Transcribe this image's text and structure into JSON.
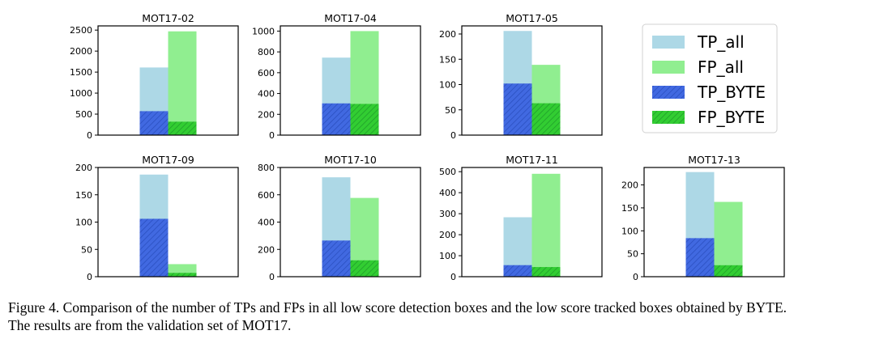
{
  "legend": {
    "placement": "top-right",
    "entries": [
      {
        "label": "TP_all",
        "color": "#add8e6",
        "hatch": false
      },
      {
        "label": "FP_all",
        "color": "#90ee90",
        "hatch": false
      },
      {
        "label": "TP_BYTE",
        "color": "#4169e1",
        "hatch": true
      },
      {
        "label": "FP_BYTE",
        "color": "#32cd32",
        "hatch": true
      }
    ]
  },
  "caption": {
    "line1": "Figure 4. Comparison of the number of TPs and FPs in all low score detection boxes and the low score tracked boxes obtained by BYTE.",
    "line2": "The results are from the validation set of MOT17."
  },
  "chart_data": [
    {
      "type": "bar",
      "title": "MOT17-02",
      "ylim": [
        0,
        2600
      ],
      "yticks": [
        0,
        500,
        1000,
        1500,
        2000,
        2500
      ],
      "tp_all": 1610,
      "fp_all": 2470,
      "tp_byte": 570,
      "fp_byte": 320
    },
    {
      "type": "bar",
      "title": "MOT17-04",
      "ylim": [
        0,
        1050
      ],
      "yticks": [
        0,
        200,
        400,
        600,
        800,
        1000
      ],
      "tp_all": 745,
      "fp_all": 1000,
      "tp_byte": 305,
      "fp_byte": 300
    },
    {
      "type": "bar",
      "title": "MOT17-05",
      "ylim": [
        0,
        216
      ],
      "yticks": [
        0,
        50,
        100,
        150,
        200
      ],
      "tp_all": 206,
      "fp_all": 139,
      "tp_byte": 102,
      "fp_byte": 63
    },
    {
      "type": "bar",
      "title": "MOT17-09",
      "ylim": [
        0,
        200
      ],
      "yticks": [
        0,
        50,
        100,
        150,
        200
      ],
      "tp_all": 187,
      "fp_all": 23,
      "tp_byte": 106,
      "fp_byte": 7
    },
    {
      "type": "bar",
      "title": "MOT17-10",
      "ylim": [
        0,
        800
      ],
      "yticks": [
        0,
        200,
        400,
        600,
        800
      ],
      "tp_all": 728,
      "fp_all": 577,
      "tp_byte": 265,
      "fp_byte": 120
    },
    {
      "type": "bar",
      "title": "MOT17-11",
      "ylim": [
        0,
        520
      ],
      "yticks": [
        0,
        100,
        200,
        300,
        400,
        500
      ],
      "tp_all": 283,
      "fp_all": 490,
      "tp_byte": 55,
      "fp_byte": 46
    },
    {
      "type": "bar",
      "title": "MOT17-13",
      "ylim": [
        0,
        238
      ],
      "yticks": [
        0,
        50,
        100,
        150,
        200
      ],
      "tp_all": 228,
      "fp_all": 163,
      "tp_byte": 84,
      "fp_byte": 25
    }
  ]
}
